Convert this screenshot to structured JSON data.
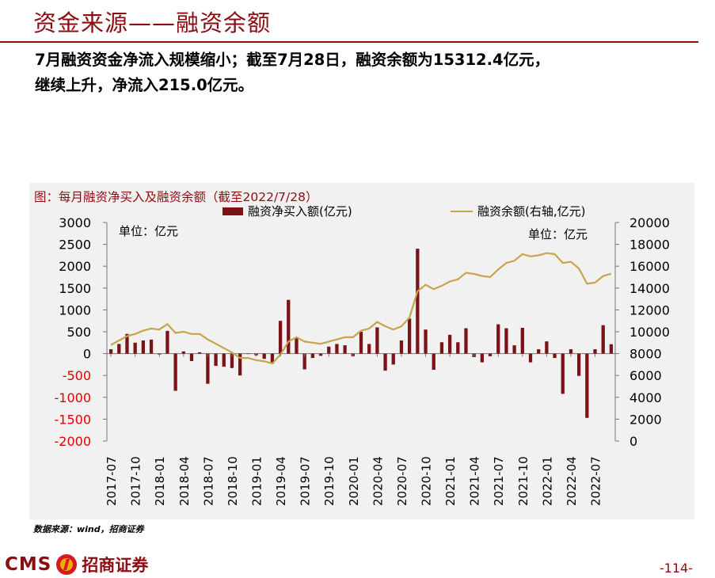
{
  "page": {
    "title": "资金来源——融资余额",
    "summary_line1": "7月融资资金净流入规模缩小；截至7月28日，融资余额为15312.4亿元，",
    "summary_line2": "继续上升，净流入215.0亿元。",
    "source": "数据来源：wind，招商证券",
    "logo_text": "CMS",
    "logo_cn": "招商证券",
    "page_number": "-114-"
  },
  "colors": {
    "title": "#8b0d12",
    "bar": "#7b1217",
    "line": "#c8a44a",
    "negative_axis": "#e00000",
    "panel_bg": "#f1f1f1"
  },
  "chart_data": {
    "type": "bar+line",
    "title": "图：每月融资净买入及融资余额（截至2022/7/28）",
    "left_unit": "单位：亿元",
    "right_unit": "单位：亿元",
    "y_left_lim": [
      -2000,
      3000
    ],
    "y_left_ticks": [
      "3000",
      "2500",
      "2000",
      "1500",
      "1000",
      "500",
      "0",
      "-500",
      "-1000",
      "-1500",
      "-2000"
    ],
    "y_right_lim": [
      0,
      20000
    ],
    "y_right_ticks": [
      "20000",
      "18000",
      "16000",
      "14000",
      "12000",
      "10000",
      "8000",
      "6000",
      "4000",
      "2000",
      "0"
    ],
    "x_tick_labels": [
      "2017-07",
      "2017-10",
      "2018-01",
      "2018-04",
      "2018-07",
      "2018-10",
      "2019-01",
      "2019-04",
      "2019-07",
      "2019-10",
      "2020-01",
      "2020-04",
      "2020-07",
      "2020-10",
      "2021-01",
      "2021-04",
      "2021-07",
      "2021-10",
      "2022-01",
      "2022-04",
      "2022-07"
    ],
    "x_tick_month_index": [
      0,
      3,
      6,
      9,
      12,
      15,
      18,
      21,
      24,
      27,
      30,
      33,
      36,
      39,
      42,
      45,
      48,
      51,
      54,
      57,
      60
    ],
    "grid": false,
    "legend_position": "top",
    "series": [
      {
        "name": "融资净买入额(亿元)",
        "kind": "bar",
        "axis": "left",
        "values": [
          100,
          220,
          450,
          250,
          300,
          320,
          -20,
          520,
          -850,
          50,
          -170,
          30,
          -690,
          -280,
          -300,
          -330,
          -500,
          0,
          -40,
          -120,
          -230,
          750,
          1230,
          370,
          -360,
          -100,
          -50,
          160,
          220,
          190,
          -60,
          500,
          220,
          600,
          -390,
          -250,
          300,
          800,
          2400,
          550,
          -370,
          260,
          430,
          260,
          580,
          -80,
          -200,
          -60,
          670,
          580,
          190,
          590,
          -200,
          100,
          280,
          -100,
          -920,
          100,
          -510,
          -1470,
          100,
          650,
          215
        ]
      },
      {
        "name": "融资余额(右轴,亿元)",
        "kind": "line",
        "axis": "right",
        "values": [
          8800,
          9200,
          9600,
          9800,
          10100,
          10300,
          10200,
          10700,
          9900,
          10000,
          9800,
          9800,
          9300,
          8900,
          8500,
          8100,
          7600,
          7600,
          7400,
          7300,
          7100,
          7900,
          9100,
          9500,
          9100,
          9000,
          8900,
          9100,
          9300,
          9500,
          9500,
          10100,
          10300,
          10900,
          10500,
          10200,
          10500,
          11300,
          13700,
          14300,
          13900,
          14200,
          14600,
          14800,
          15400,
          15300,
          15100,
          15000,
          15700,
          16300,
          16500,
          17100,
          16900,
          17000,
          17200,
          17100,
          16300,
          16400,
          15800,
          14400,
          14500,
          15100,
          15312.4
        ]
      }
    ]
  }
}
